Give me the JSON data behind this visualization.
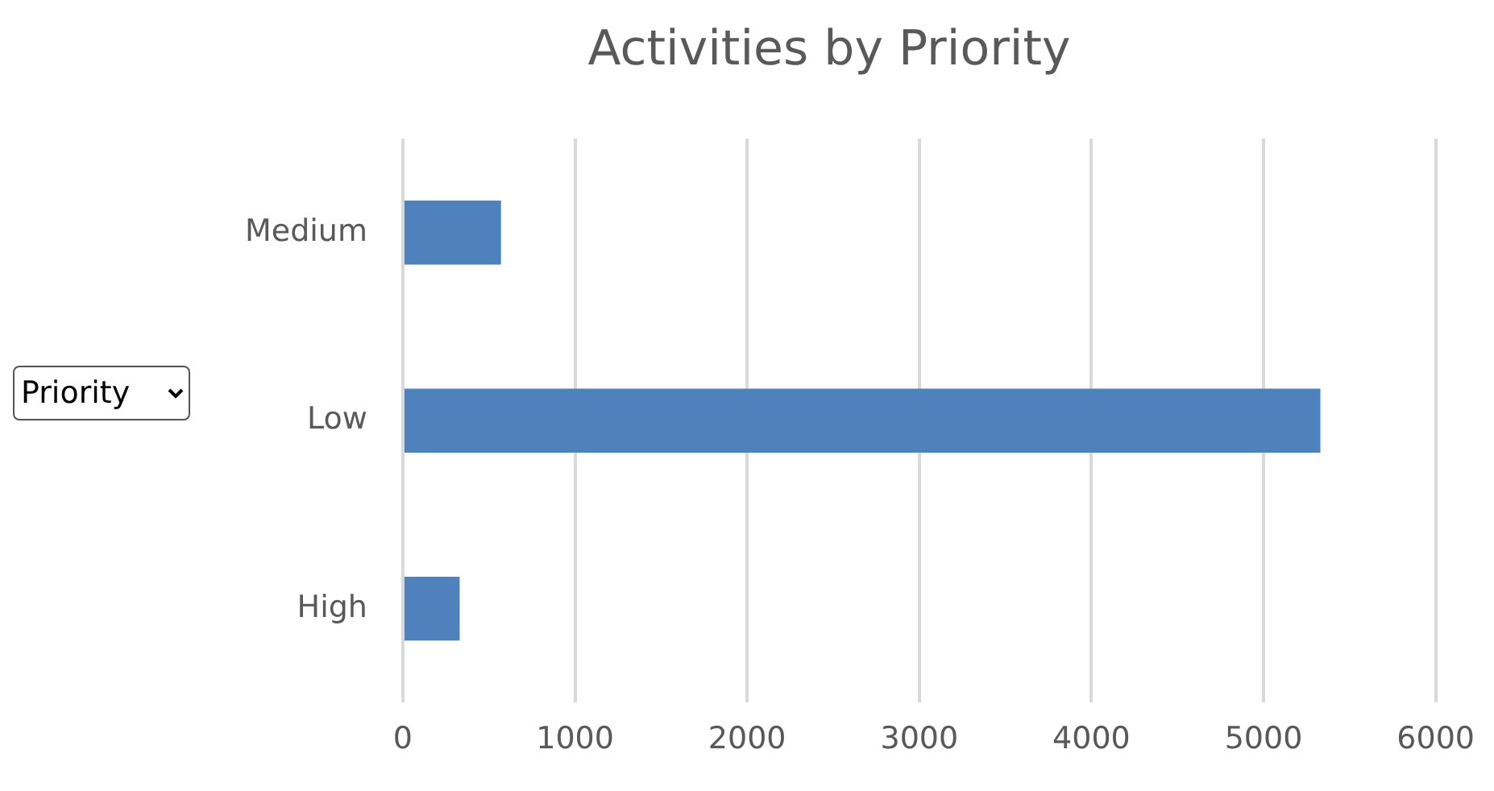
{
  "chart_data": {
    "type": "bar",
    "orientation": "horizontal",
    "title": "Activities by Priority",
    "ylabel": "Priority",
    "categories": [
      "Medium",
      "Low",
      "High"
    ],
    "values": [
      570,
      5330,
      330
    ],
    "color": "#4f81bd",
    "xlim": [
      0,
      6000
    ],
    "xticks": [
      0,
      1000,
      2000,
      3000,
      4000,
      5000,
      6000
    ],
    "grid": "x"
  }
}
